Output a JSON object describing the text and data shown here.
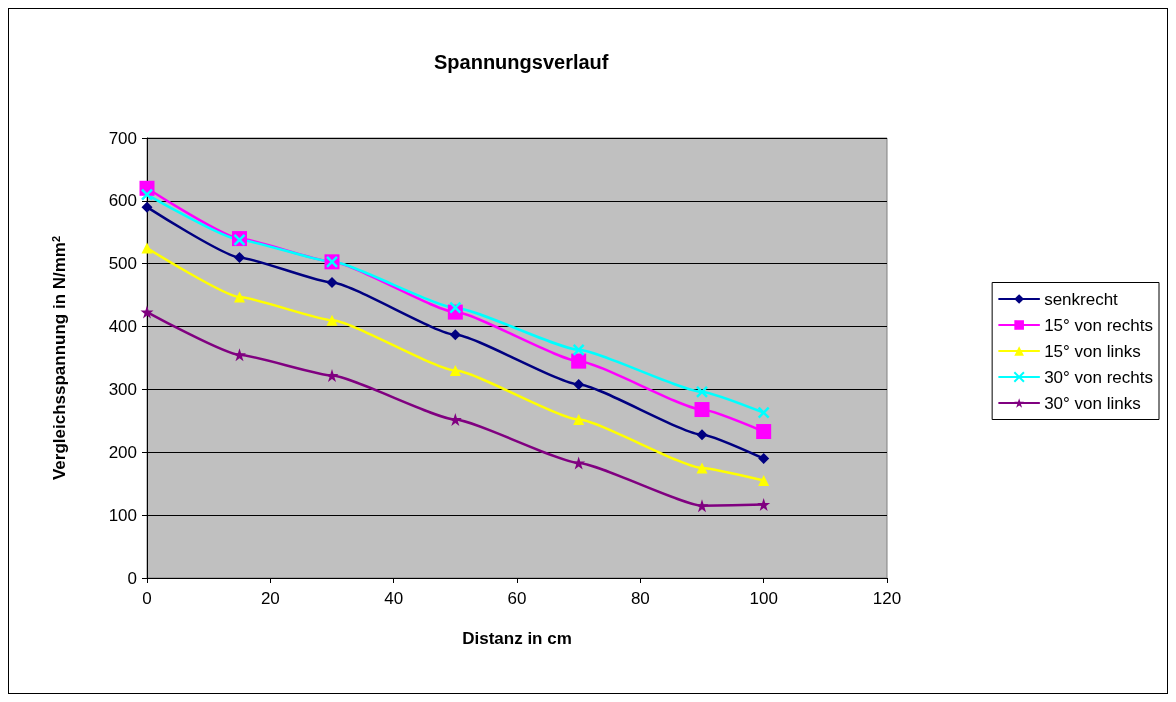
{
  "chart_data": {
    "type": "line",
    "title": "Spannungsverlauf",
    "xlabel": "Distanz in cm",
    "ylabel": "Vergleichsspannung in N/mm$^{2}$",
    "x": [
      0,
      15,
      30,
      50,
      70,
      90,
      100
    ],
    "xlim": [
      0,
      120
    ],
    "xticks": [
      0,
      20,
      40,
      60,
      80,
      100,
      120
    ],
    "ylim": [
      0,
      700
    ],
    "yticks": [
      0,
      100,
      200,
      300,
      400,
      500,
      600,
      700
    ],
    "grid": "y",
    "legend": "right",
    "series": [
      {
        "name": "senkrecht",
        "color": "#000080",
        "marker": "diamond",
        "values": [
          590,
          510,
          470,
          387,
          308,
          228,
          190
        ]
      },
      {
        "name": "15° von rechts",
        "color": "#ff00ff",
        "marker": "square",
        "values": [
          620,
          540,
          503,
          423,
          345,
          268,
          233
        ]
      },
      {
        "name": "15° von links",
        "color": "#ffff00",
        "marker": "triangle",
        "values": [
          525,
          447,
          410,
          330,
          252,
          175,
          155
        ]
      },
      {
        "name": "30° von rechts",
        "color": "#00ffff",
        "marker": "cross",
        "values": [
          610,
          538,
          503,
          430,
          363,
          296,
          263
        ]
      },
      {
        "name": "30° von links",
        "color": "#800080",
        "marker": "star",
        "values": [
          423,
          355,
          322,
          252,
          183,
          115,
          117
        ]
      }
    ]
  }
}
